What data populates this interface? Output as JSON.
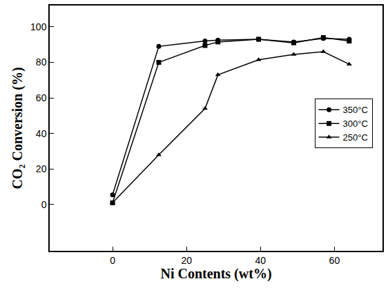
{
  "chart_data": {
    "type": "line",
    "x_label": "Ni Contents (wt%)",
    "y_label": "CO₂ Conversion (%)",
    "x": [
      0,
      12.5,
      25,
      28.5,
      39.5,
      49,
      57,
      64
    ],
    "series": [
      {
        "name": "350°C",
        "color": "#000000",
        "marker": "circle",
        "line_style": "solid",
        "values": [
          5.5,
          89,
          92,
          92.5,
          93,
          91.5,
          93.5,
          93
        ]
      },
      {
        "name": "300°C",
        "color": "#000000",
        "marker": "square",
        "line_style": "solid",
        "values": [
          1,
          80,
          89.5,
          91.5,
          93,
          91,
          94,
          92
        ]
      },
      {
        "name": "250°C",
        "color": "#000000",
        "marker": "triangle-up",
        "line_style": "solid",
        "values": [
          1,
          28,
          54,
          73,
          81.5,
          84.5,
          86,
          79
        ]
      }
    ],
    "xlim": [
      -17,
      73
    ],
    "ylim": [
      -26,
      112
    ],
    "xticks": [
      0,
      20,
      40,
      60
    ],
    "yticks": [
      0,
      20,
      40,
      60,
      80,
      100
    ],
    "grid": false,
    "legend": "right"
  }
}
